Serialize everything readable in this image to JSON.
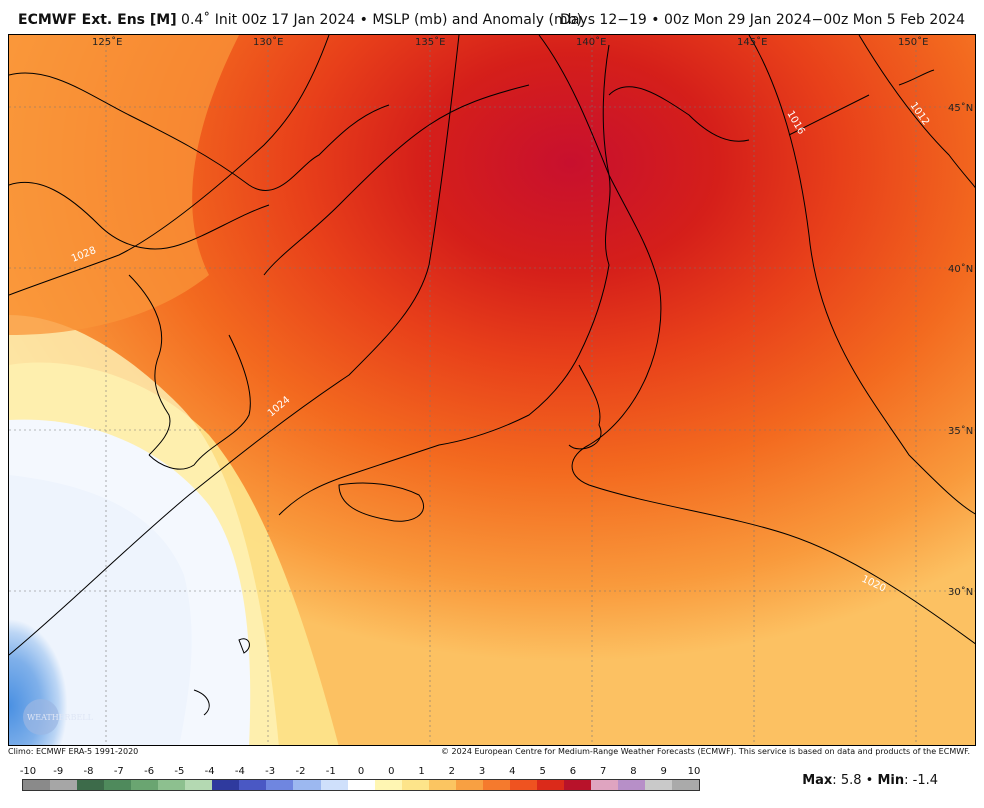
{
  "header": {
    "title_bold": "ECMWF Ext. Ens [M]",
    "resolution": "0.4˚",
    "init_text": "Init 00z 17 Jan 2024",
    "bullet": "•",
    "field_text": "MSLP (mb) and Anomaly (mb)",
    "valid_text": "Days 12−19 • 00z Mon 29 Jan 2024−00z Mon 5 Feb 2024"
  },
  "map": {
    "lon_labels": [
      "125˚E",
      "130˚E",
      "135˚E",
      "140˚E",
      "145˚E",
      "150˚E"
    ],
    "lat_labels": [
      "45˚N",
      "40˚N",
      "35˚N",
      "30˚N"
    ],
    "isobar_labels": [
      "1028",
      "1024",
      "1020",
      "1016",
      "1012"
    ],
    "logo": "WEATHERBELL"
  },
  "footer": {
    "climo": "Climo: ECMWF ERA-5 1991-2020",
    "copyright": "© 2024 European Centre for Medium-Range Weather Forecasts (ECMWF). This service is based on data and products of the ECMWF."
  },
  "colorbar": {
    "tick_labels": [
      "-10",
      "-9",
      "-8",
      "-7",
      "-6",
      "-5",
      "-4",
      "-4",
      "-3",
      "-2",
      "-1",
      "0",
      "0",
      "1",
      "2",
      "3",
      "4",
      "5",
      "6",
      "7",
      "8",
      "9",
      "10"
    ],
    "colors": [
      "#8a8a8a",
      "#a6a6a6",
      "#3d6b4a",
      "#4f8a5c",
      "#6aa571",
      "#8dc08f",
      "#b4d9b2",
      "#2f3a9e",
      "#4a58c4",
      "#6f86e0",
      "#9cb8f0",
      "#cfe0fb",
      "#ffffff",
      "#fff6b3",
      "#fde48a",
      "#fbc561",
      "#f8a042",
      "#f57a2d",
      "#ef5320",
      "#db2a1a",
      "#b8122a",
      "#dfa4c0",
      "#b78fc8",
      "#c9c9c9",
      "#aaaaaa"
    ]
  },
  "stats": {
    "max_label": "Max",
    "max_value": "5.8",
    "min_label": "Min",
    "min_value": "-1.4",
    "separator": "•"
  }
}
